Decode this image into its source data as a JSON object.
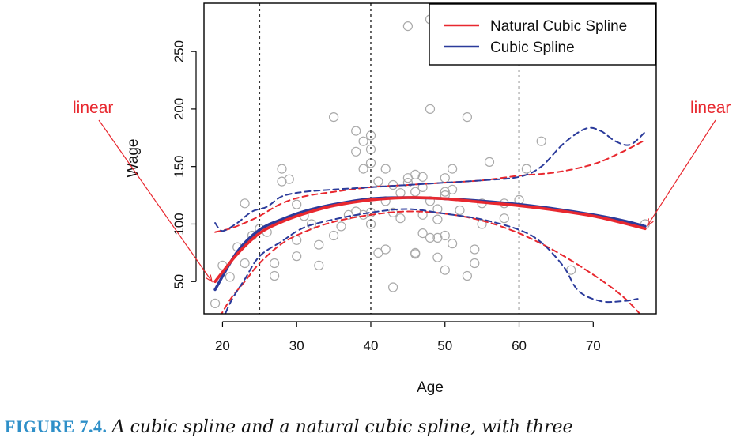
{
  "chart_data": {
    "type": "line",
    "xlabel": "Age",
    "ylabel": "Wage",
    "xlim": [
      17.5,
      78.5
    ],
    "ylim": [
      22,
      292
    ],
    "xticks": [
      20,
      30,
      40,
      50,
      60,
      70
    ],
    "yticks": [
      50,
      100,
      150,
      200,
      250
    ],
    "knots": [
      25,
      40,
      60
    ],
    "legend": {
      "position": "top-right",
      "entries": [
        {
          "label": "Natural Cubic Spline",
          "color": "#e8282f"
        },
        {
          "label": "Cubic Spline",
          "color": "#2b3b9b"
        }
      ]
    },
    "series": [
      {
        "name": "Natural Cubic Spline",
        "role": "fit",
        "color": "#e8282f",
        "x": [
          19,
          22,
          25,
          28,
          31,
          35,
          40,
          45,
          50,
          55,
          60,
          65,
          70,
          74,
          77
        ],
        "y": [
          50,
          74,
          92,
          102,
          109,
          116,
          121,
          123,
          122,
          119,
          116,
          112,
          107,
          101,
          96
        ]
      },
      {
        "name": "Natural Cubic Spline",
        "role": "upper-band",
        "color": "#e8282f",
        "x": [
          19,
          21,
          23,
          25,
          28,
          31,
          35,
          40,
          45,
          50,
          55,
          60,
          65,
          70,
          74,
          77
        ],
        "y": [
          93,
          96,
          101,
          107,
          118,
          124,
          128,
          132,
          134,
          136,
          138,
          142,
          145,
          152,
          163,
          173
        ]
      },
      {
        "name": "Natural Cubic Spline",
        "role": "lower-band",
        "color": "#e8282f",
        "x": [
          19,
          21,
          23,
          25,
          28,
          31,
          35,
          40,
          45,
          50,
          55,
          60,
          65,
          70,
          74,
          77
        ],
        "y": [
          12,
          34,
          50,
          66,
          83,
          93,
          102,
          108,
          111,
          109,
          103,
          92,
          76,
          56,
          37,
          17
        ]
      },
      {
        "name": "Cubic Spline",
        "role": "fit",
        "color": "#2b3b9b",
        "x": [
          19,
          22,
          25,
          28,
          31,
          35,
          40,
          45,
          50,
          55,
          60,
          65,
          70,
          74,
          77
        ],
        "y": [
          43,
          76,
          95,
          104,
          111,
          117,
          122,
          123,
          122,
          120,
          117,
          113,
          108,
          103,
          98
        ]
      },
      {
        "name": "Cubic Spline",
        "role": "upper-band",
        "color": "#2b3b9b",
        "x": [
          19,
          20,
          22,
          24,
          26,
          28,
          31,
          35,
          40,
          45,
          50,
          55,
          60,
          63,
          66,
          69,
          71,
          73,
          75,
          77
        ],
        "y": [
          101,
          94,
          101,
          111,
          115,
          124,
          128,
          130,
          132,
          134,
          136,
          138,
          141,
          150,
          170,
          183,
          181,
          172,
          169,
          180
        ]
      },
      {
        "name": "Cubic Spline",
        "role": "lower-band",
        "color": "#2b3b9b",
        "x": [
          19,
          21,
          23,
          25,
          28,
          31,
          35,
          40,
          45,
          50,
          55,
          60,
          63,
          66,
          68,
          71,
          74,
          76
        ],
        "y": [
          0,
          31,
          52,
          72,
          85,
          97,
          104,
          110,
          113,
          109,
          104,
          95,
          84,
          63,
          42,
          33,
          33,
          35
        ]
      }
    ],
    "points": [
      [
        19,
        31
      ],
      [
        20,
        64
      ],
      [
        21,
        54
      ],
      [
        22,
        80
      ],
      [
        23,
        118
      ],
      [
        23,
        66
      ],
      [
        24,
        90
      ],
      [
        25,
        96
      ],
      [
        26,
        93
      ],
      [
        27,
        66
      ],
      [
        27,
        55
      ],
      [
        28,
        148
      ],
      [
        28,
        137
      ],
      [
        29,
        139
      ],
      [
        30,
        117
      ],
      [
        30,
        72
      ],
      [
        30,
        86
      ],
      [
        31,
        107
      ],
      [
        32,
        100
      ],
      [
        33,
        82
      ],
      [
        33,
        64
      ],
      [
        35,
        193
      ],
      [
        35,
        90
      ],
      [
        36,
        98
      ],
      [
        37,
        108
      ],
      [
        38,
        181
      ],
      [
        38,
        163
      ],
      [
        38,
        111
      ],
      [
        39,
        172
      ],
      [
        39,
        148
      ],
      [
        39,
        108
      ],
      [
        40,
        177
      ],
      [
        40,
        165
      ],
      [
        40,
        153
      ],
      [
        40,
        110
      ],
      [
        40,
        100
      ],
      [
        41,
        137
      ],
      [
        41,
        75
      ],
      [
        42,
        148
      ],
      [
        42,
        78
      ],
      [
        42,
        120
      ],
      [
        43,
        134
      ],
      [
        43,
        110
      ],
      [
        43,
        45
      ],
      [
        44,
        127
      ],
      [
        44,
        105
      ],
      [
        45,
        272
      ],
      [
        45,
        140
      ],
      [
        45,
        136
      ],
      [
        46,
        143
      ],
      [
        46,
        128
      ],
      [
        46,
        75
      ],
      [
        46,
        74
      ],
      [
        47,
        141
      ],
      [
        47,
        132
      ],
      [
        47,
        108
      ],
      [
        47,
        92
      ],
      [
        48,
        278
      ],
      [
        48,
        200
      ],
      [
        48,
        120
      ],
      [
        48,
        88
      ],
      [
        49,
        113
      ],
      [
        49,
        104
      ],
      [
        49,
        88
      ],
      [
        49,
        71
      ],
      [
        50,
        140
      ],
      [
        50,
        128
      ],
      [
        50,
        125
      ],
      [
        50,
        90
      ],
      [
        50,
        60
      ],
      [
        51,
        148
      ],
      [
        51,
        130
      ],
      [
        51,
        83
      ],
      [
        52,
        282
      ],
      [
        52,
        112
      ],
      [
        53,
        193
      ],
      [
        53,
        55
      ],
      [
        54,
        78
      ],
      [
        54,
        66
      ],
      [
        55,
        118
      ],
      [
        55,
        100
      ],
      [
        56,
        154
      ],
      [
        58,
        105
      ],
      [
        58,
        118
      ],
      [
        60,
        121
      ],
      [
        61,
        148
      ],
      [
        63,
        172
      ],
      [
        67,
        60
      ],
      [
        77,
        100
      ]
    ],
    "annotations": [
      {
        "text": "linear",
        "target": [
          19,
          50
        ]
      },
      {
        "text": "linear",
        "target": [
          77,
          96
        ]
      }
    ]
  },
  "caption": {
    "label": "FIGURE 7.4.",
    "text": "A cubic spline and a natural cubic spline, with three"
  }
}
